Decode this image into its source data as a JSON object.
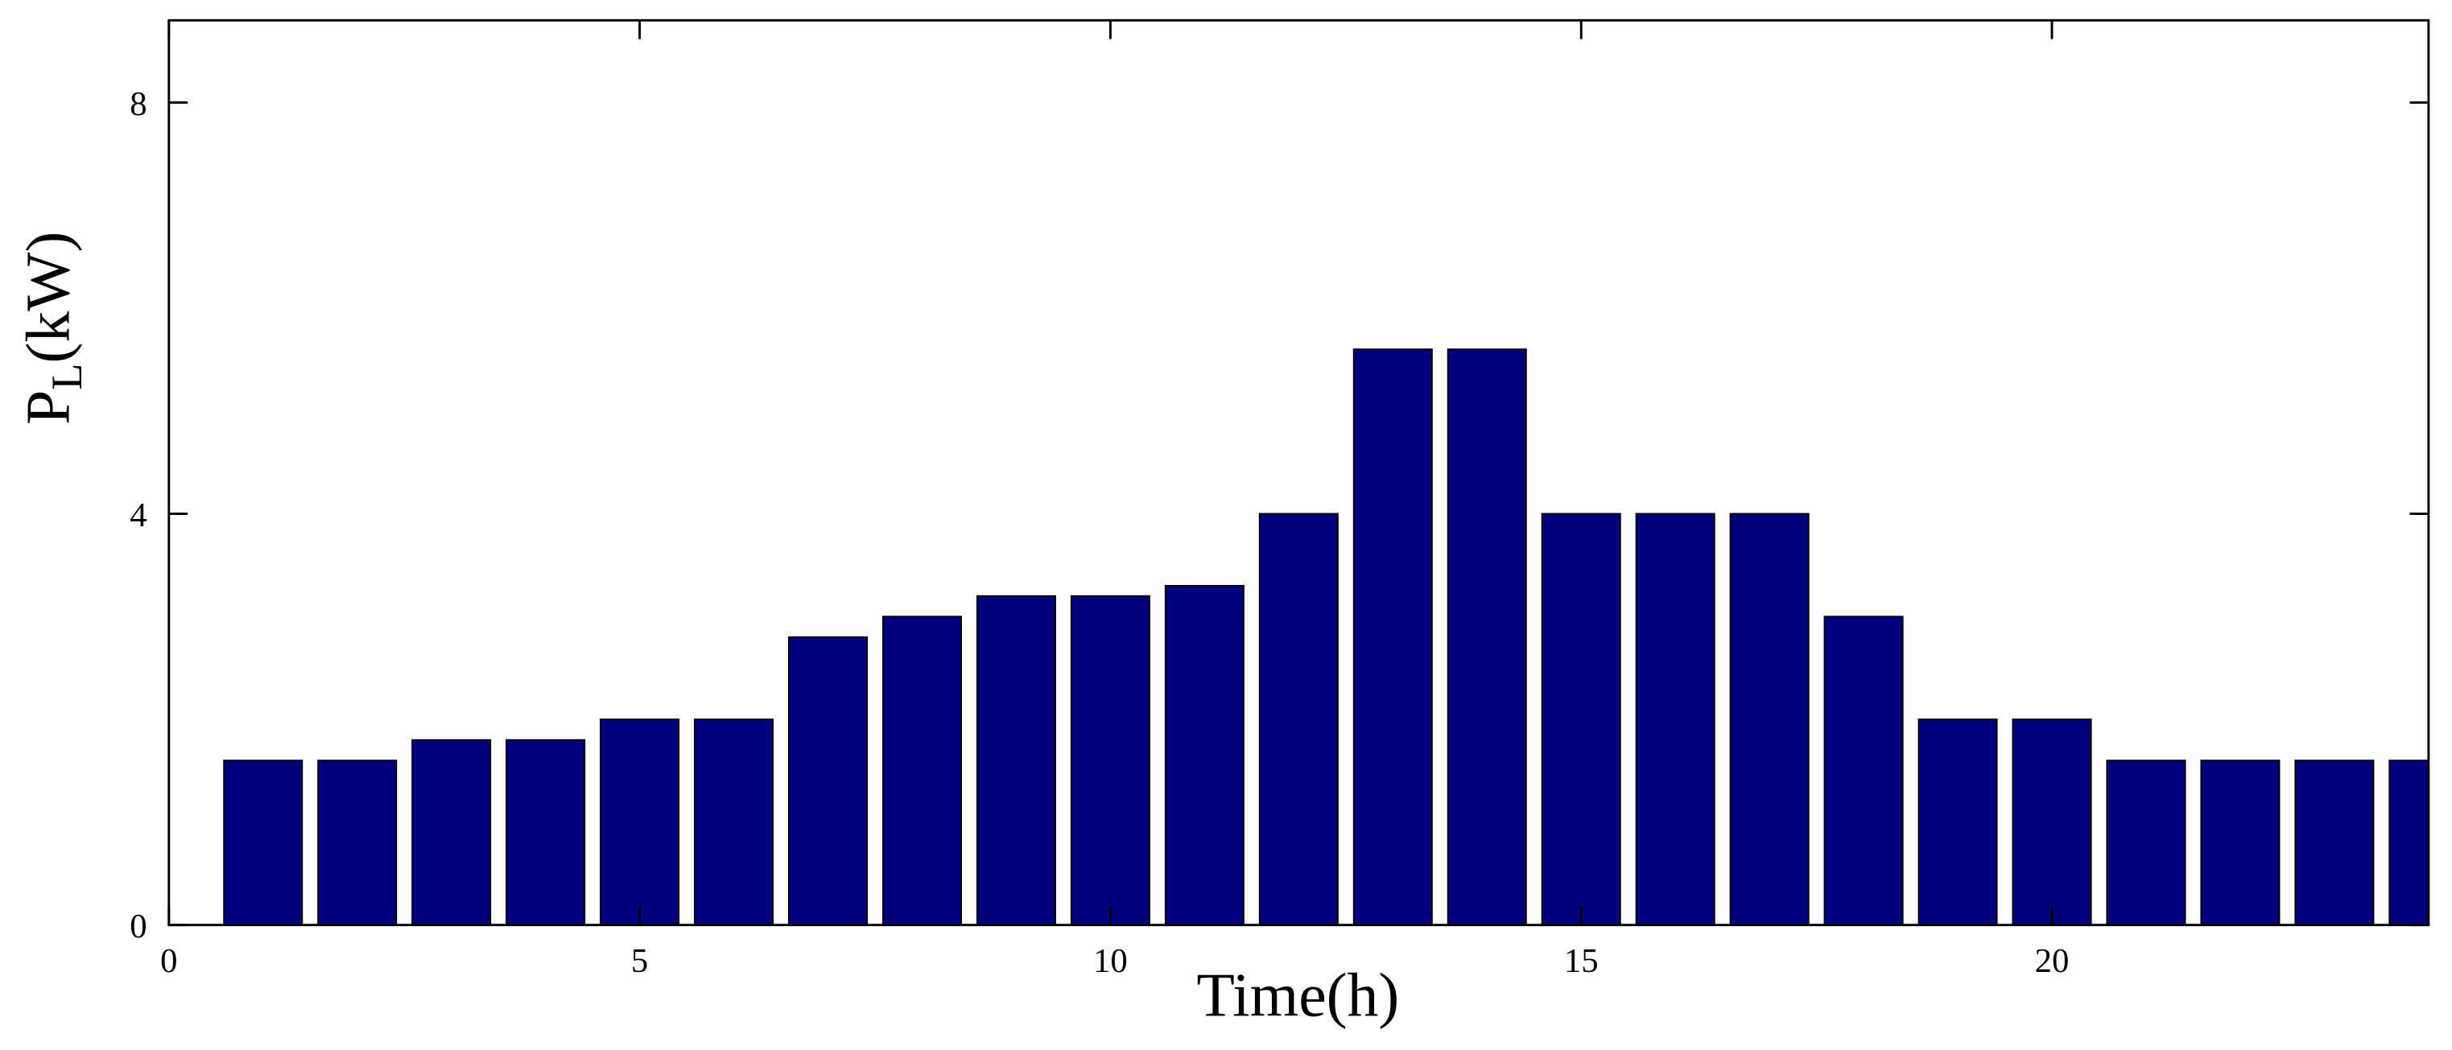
{
  "chart_data": {
    "type": "bar",
    "xlabel": "Time(h)",
    "ylabel": [
      "P",
      "L",
      "(kW)"
    ],
    "x": [
      1,
      2,
      3,
      4,
      5,
      6,
      7,
      8,
      9,
      10,
      11,
      12,
      13,
      14,
      15,
      16,
      17,
      18,
      19,
      20,
      21,
      22,
      23,
      24
    ],
    "values": [
      1.6,
      1.6,
      1.8,
      1.8,
      2,
      2,
      2.8,
      3,
      3.2,
      3.2,
      3.3,
      4,
      5.6,
      5.6,
      4,
      4,
      4,
      3,
      2,
      2,
      1.6,
      1.6,
      1.6,
      1.6
    ],
    "color": "#00007f",
    "xlim": [
      0,
      24
    ],
    "xticks": [
      0,
      5,
      10,
      15,
      20
    ],
    "ylim": [
      0,
      8.8
    ],
    "yticks": [
      0,
      4,
      8
    ],
    "grid": false
  }
}
